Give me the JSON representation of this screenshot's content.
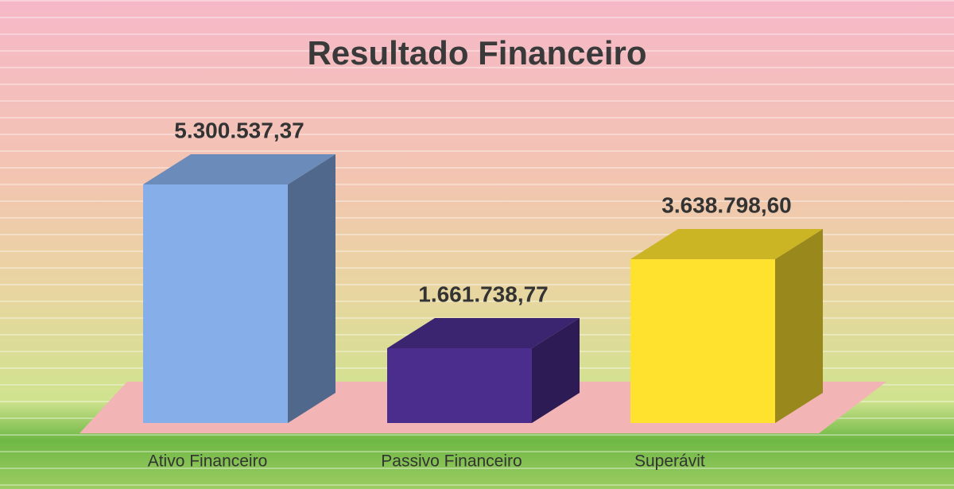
{
  "chart_data": {
    "type": "bar3d",
    "title": "Resultado Financeiro",
    "categories": [
      "Ativo Financeiro",
      "Passivo Financeiro",
      "Superávit"
    ],
    "values": [
      5300537.37,
      1661738.77,
      3638798.6
    ],
    "value_labels": [
      "5.300.537,37",
      "1.661.738,77",
      "3.638.798,60"
    ],
    "colors": [
      "#86aee8",
      "#4a2d8c",
      "#ffe22e"
    ]
  }
}
